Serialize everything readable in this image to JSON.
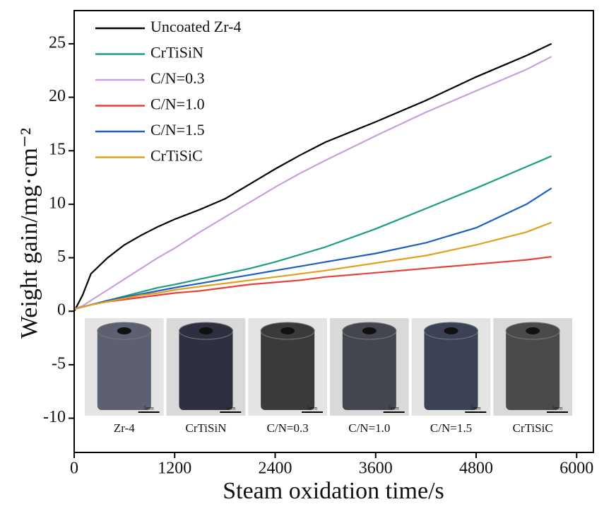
{
  "chart_data": {
    "type": "line",
    "x_label": "Steam oxidation time/s",
    "y_label": "Weight gain/mg·cm⁻²",
    "x": [
      0,
      100,
      200,
      400,
      600,
      800,
      1000,
      1200,
      1500,
      1800,
      2100,
      2400,
      2700,
      3000,
      3600,
      4200,
      4800,
      5400,
      5700
    ],
    "series": [
      {
        "name": "Uncoated Zr-4",
        "color": "#000000",
        "values": [
          0,
          1.5,
          3.5,
          5,
          6.2,
          7.1,
          7.9,
          8.6,
          9.5,
          10.5,
          11.9,
          13.3,
          14.6,
          15.8,
          17.7,
          19.7,
          21.9,
          23.9,
          25.0
        ]
      },
      {
        "name": "CrTiSiN",
        "color": "#1a9e84",
        "values": [
          0.2,
          0.4,
          0.6,
          1.0,
          1.4,
          1.8,
          2.2,
          2.5,
          3.0,
          3.5,
          4.0,
          4.6,
          5.3,
          6.0,
          7.7,
          9.6,
          11.5,
          13.5,
          14.5
        ]
      },
      {
        "name": "C/N=0.3",
        "color": "#c9a0dc",
        "values": [
          0.2,
          0.5,
          1.0,
          2.0,
          3.0,
          4.0,
          5.0,
          5.9,
          7.4,
          8.8,
          10.2,
          11.6,
          12.9,
          14.1,
          16.4,
          18.6,
          20.6,
          22.6,
          23.8
        ]
      },
      {
        "name": "C/N=1.0",
        "color": "#e8413c",
        "values": [
          0.2,
          0.4,
          0.6,
          0.9,
          1.1,
          1.3,
          1.5,
          1.7,
          1.9,
          2.2,
          2.5,
          2.7,
          2.9,
          3.2,
          3.6,
          4.0,
          4.4,
          4.8,
          5.1
        ]
      },
      {
        "name": "C/N=1.5",
        "color": "#1f5fbf",
        "values": [
          0.2,
          0.4,
          0.6,
          1.0,
          1.3,
          1.6,
          1.9,
          2.2,
          2.6,
          3.0,
          3.4,
          3.8,
          4.2,
          4.6,
          5.4,
          6.4,
          7.8,
          10.0,
          11.5
        ]
      },
      {
        "name": "CrTiSiC",
        "color": "#e0a020",
        "values": [
          0.2,
          0.4,
          0.6,
          0.9,
          1.2,
          1.5,
          1.7,
          2.0,
          2.3,
          2.6,
          2.9,
          3.2,
          3.5,
          3.8,
          4.5,
          5.2,
          6.2,
          7.4,
          8.3
        ]
      }
    ],
    "xlim": [
      0,
      6200
    ],
    "xticks": [
      0,
      1200,
      2400,
      3600,
      4800,
      6000
    ],
    "ylim": [
      -13.2,
      28.1
    ],
    "yticks": [
      -10,
      -5,
      0,
      5,
      10,
      15,
      20,
      25
    ],
    "legend": "upper-left",
    "inset_labels": [
      "Zr-4",
      "CrTiSiN",
      "C/N=0.3",
      "C/N=1.0",
      "C/N=1.5",
      "CrTiSiC"
    ],
    "scale_bar_label": "5mm"
  }
}
